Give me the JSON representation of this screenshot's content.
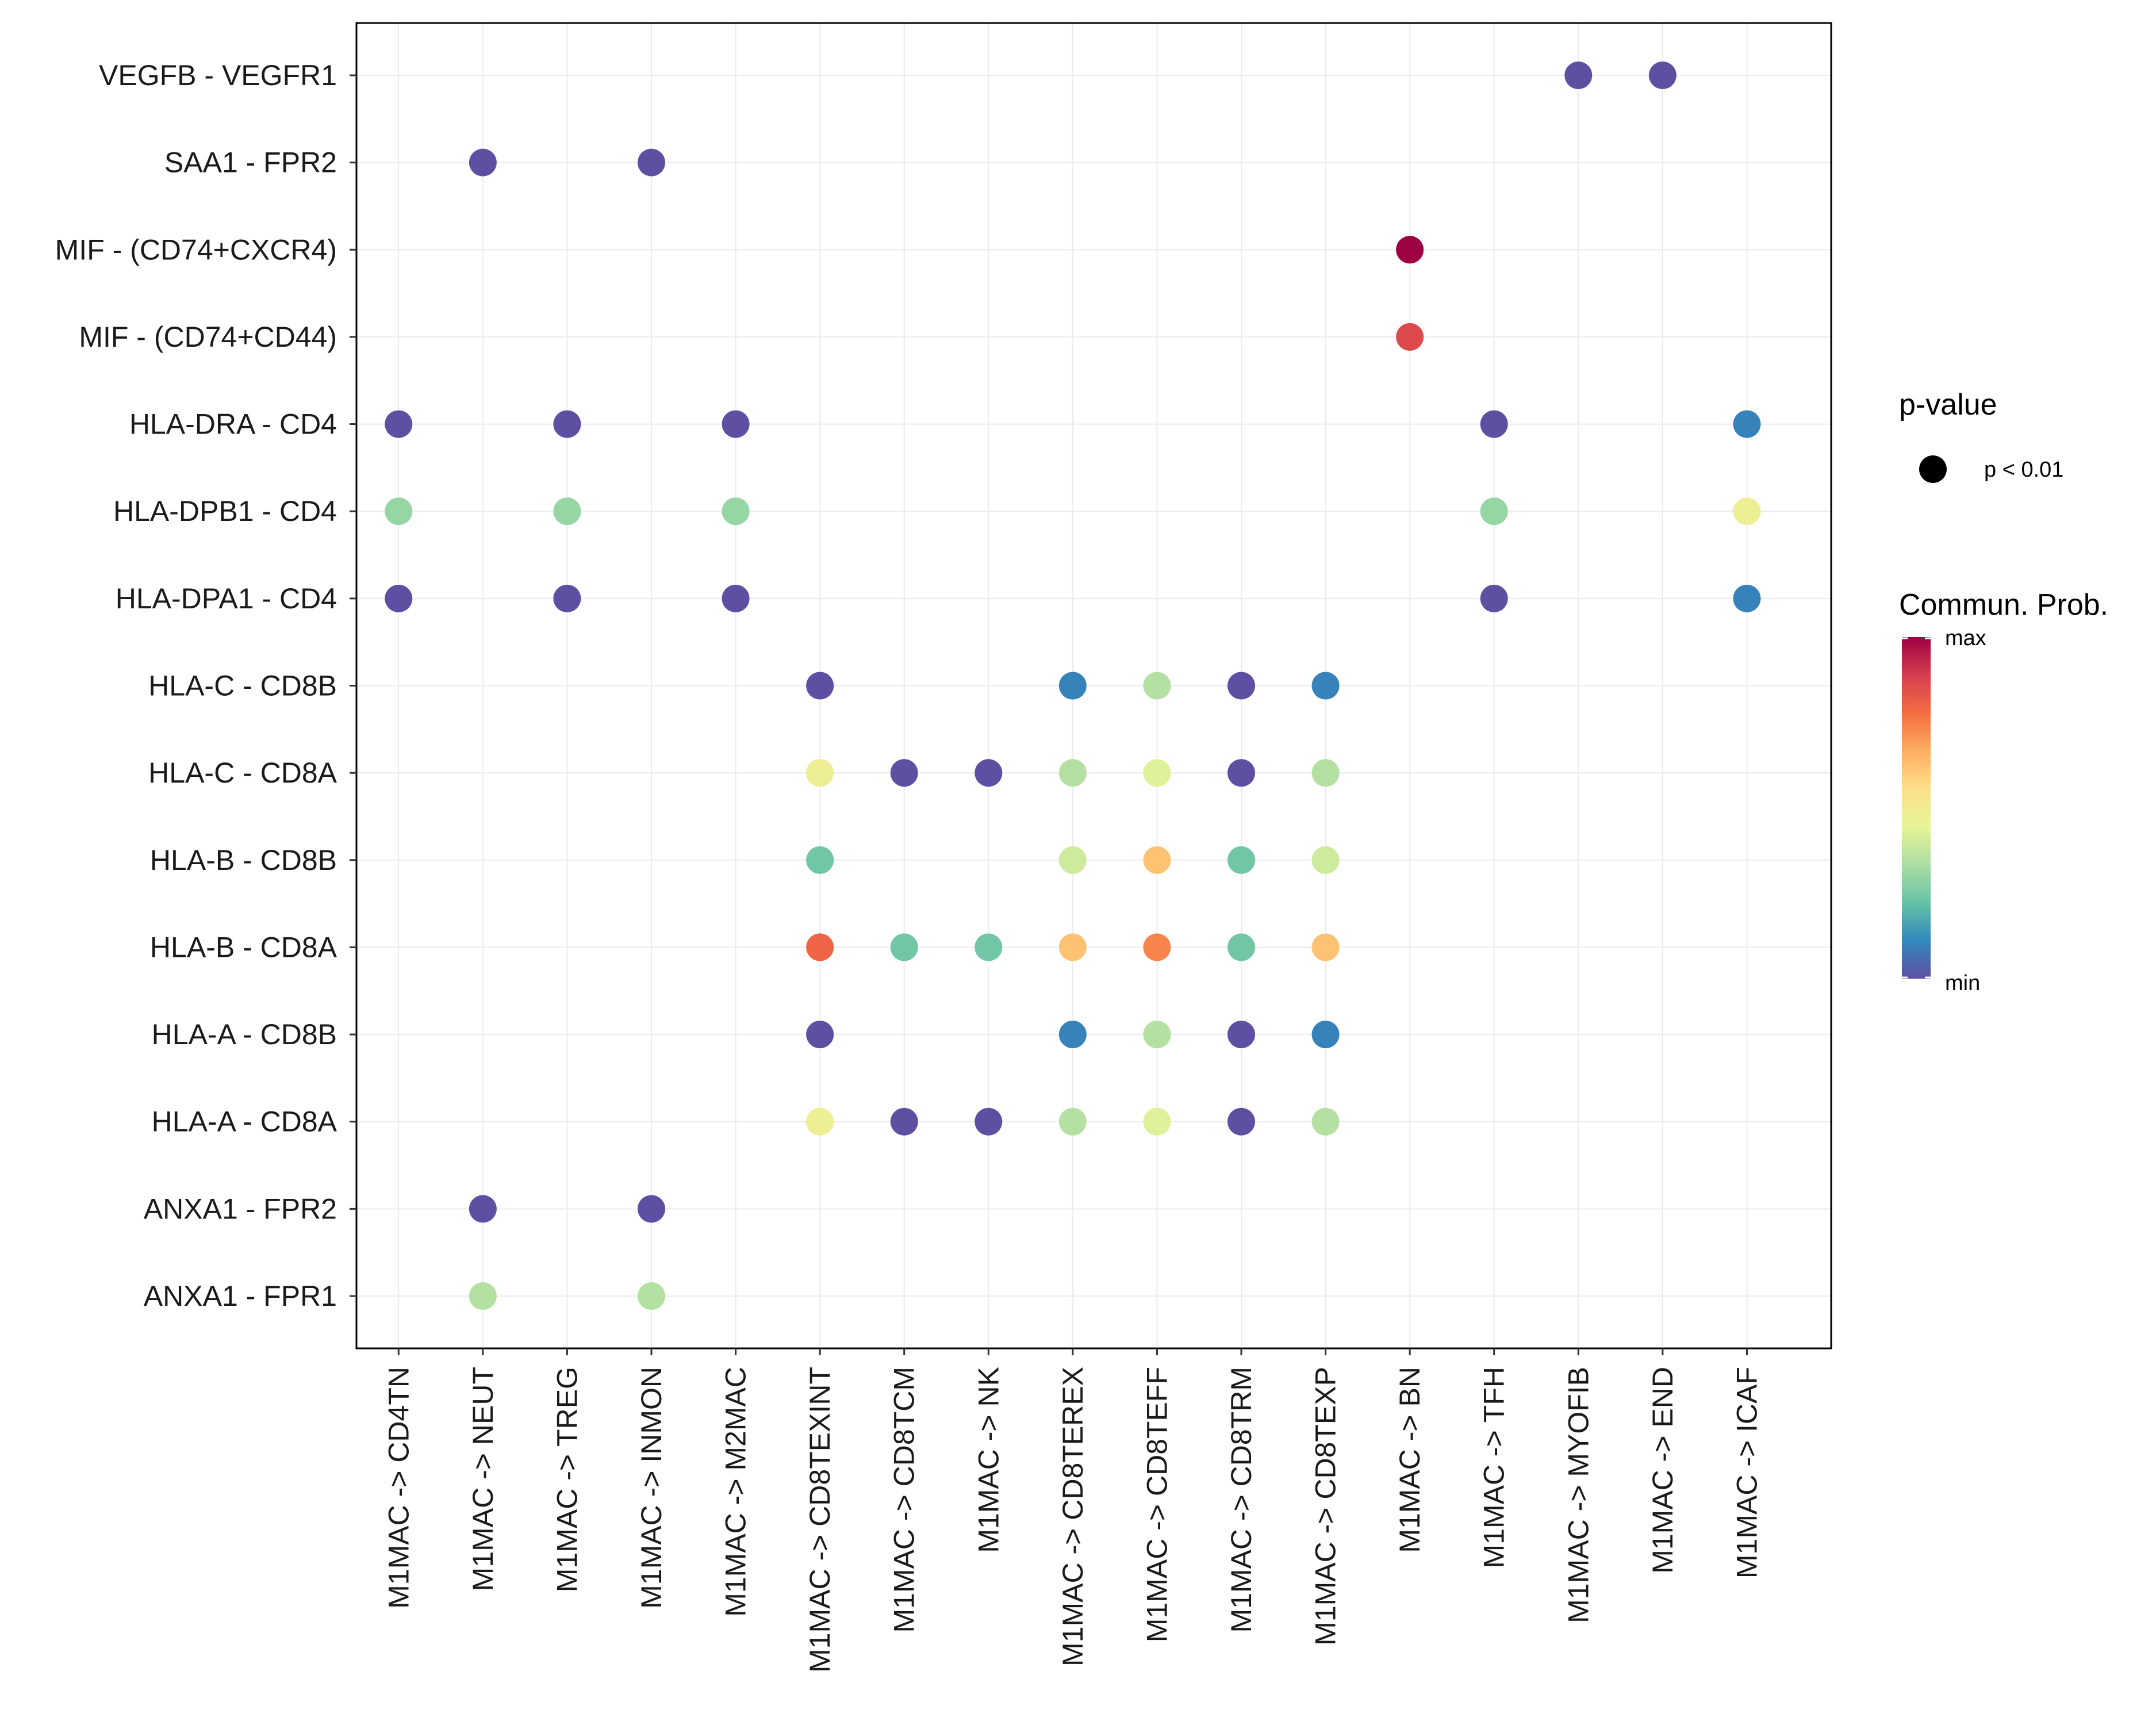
{
  "chart_data": {
    "type": "dot",
    "title": "",
    "rows": [
      "VEGFB - VEGFR1",
      "SAA1 - FPR2",
      "MIF - (CD74+CXCR4)",
      "MIF - (CD74+CD44)",
      "HLA-DRA - CD4",
      "HLA-DPB1 - CD4",
      "HLA-DPA1 - CD4",
      "HLA-C - CD8B",
      "HLA-C - CD8A",
      "HLA-B - CD8B",
      "HLA-B - CD8A",
      "HLA-A - CD8B",
      "HLA-A - CD8A",
      "ANXA1 - FPR2",
      "ANXA1 - FPR1"
    ],
    "columns": [
      "M1MAC -> CD4TN",
      "M1MAC -> NEUT",
      "M1MAC -> TREG",
      "M1MAC -> INMON",
      "M1MAC -> M2MAC",
      "M1MAC -> CD8TEXINT",
      "M1MAC -> CD8TCM",
      "M1MAC -> NK",
      "M1MAC -> CD8TEREX",
      "M1MAC -> CD8TEFF",
      "M1MAC -> CD8TRM",
      "M1MAC -> CD8TEXP",
      "M1MAC -> BN",
      "M1MAC -> TFH",
      "M1MAC -> MYOFIB",
      "M1MAC -> END",
      "M1MAC -> ICAF"
    ],
    "value_scale": "relative communication probability (0 = min, 1 = max)",
    "points": [
      {
        "row": "VEGFB - VEGFR1",
        "col": "M1MAC -> MYOFIB",
        "value": 0.0
      },
      {
        "row": "VEGFB - VEGFR1",
        "col": "M1MAC -> END",
        "value": 0.0
      },
      {
        "row": "SAA1 - FPR2",
        "col": "M1MAC -> NEUT",
        "value": 0.0
      },
      {
        "row": "SAA1 - FPR2",
        "col": "M1MAC -> INMON",
        "value": 0.0
      },
      {
        "row": "MIF - (CD74+CXCR4)",
        "col": "M1MAC -> BN",
        "value": 1.0
      },
      {
        "row": "MIF - (CD74+CD44)",
        "col": "M1MAC -> BN",
        "value": 0.86
      },
      {
        "row": "HLA-DRA - CD4",
        "col": "M1MAC -> CD4TN",
        "value": 0.0
      },
      {
        "row": "HLA-DRA - CD4",
        "col": "M1MAC -> TREG",
        "value": 0.0
      },
      {
        "row": "HLA-DRA - CD4",
        "col": "M1MAC -> M2MAC",
        "value": 0.0
      },
      {
        "row": "HLA-DRA - CD4",
        "col": "M1MAC -> TFH",
        "value": 0.0
      },
      {
        "row": "HLA-DRA - CD4",
        "col": "M1MAC -> ICAF",
        "value": 0.1
      },
      {
        "row": "HLA-DPB1 - CD4",
        "col": "M1MAC -> CD4TN",
        "value": 0.3
      },
      {
        "row": "HLA-DPB1 - CD4",
        "col": "M1MAC -> TREG",
        "value": 0.3
      },
      {
        "row": "HLA-DPB1 - CD4",
        "col": "M1MAC -> M2MAC",
        "value": 0.3
      },
      {
        "row": "HLA-DPB1 - CD4",
        "col": "M1MAC -> TFH",
        "value": 0.3
      },
      {
        "row": "HLA-DPB1 - CD4",
        "col": "M1MAC -> ICAF",
        "value": 0.48
      },
      {
        "row": "HLA-DPA1 - CD4",
        "col": "M1MAC -> CD4TN",
        "value": 0.0
      },
      {
        "row": "HLA-DPA1 - CD4",
        "col": "M1MAC -> TREG",
        "value": 0.0
      },
      {
        "row": "HLA-DPA1 - CD4",
        "col": "M1MAC -> M2MAC",
        "value": 0.0
      },
      {
        "row": "HLA-DPA1 - CD4",
        "col": "M1MAC -> TFH",
        "value": 0.0
      },
      {
        "row": "HLA-DPA1 - CD4",
        "col": "M1MAC -> ICAF",
        "value": 0.1
      },
      {
        "row": "HLA-C - CD8B",
        "col": "M1MAC -> CD8TEXINT",
        "value": 0.0
      },
      {
        "row": "HLA-C - CD8B",
        "col": "M1MAC -> CD8TEREX",
        "value": 0.1
      },
      {
        "row": "HLA-C - CD8B",
        "col": "M1MAC -> CD8TEFF",
        "value": 0.35
      },
      {
        "row": "HLA-C - CD8B",
        "col": "M1MAC -> CD8TRM",
        "value": 0.0
      },
      {
        "row": "HLA-C - CD8B",
        "col": "M1MAC -> CD8TEXP",
        "value": 0.1
      },
      {
        "row": "HLA-C - CD8A",
        "col": "M1MAC -> CD8TEXINT",
        "value": 0.48
      },
      {
        "row": "HLA-C - CD8A",
        "col": "M1MAC -> CD8TCM",
        "value": 0.0
      },
      {
        "row": "HLA-C - CD8A",
        "col": "M1MAC -> NK",
        "value": 0.0
      },
      {
        "row": "HLA-C - CD8A",
        "col": "M1MAC -> CD8TEREX",
        "value": 0.35
      },
      {
        "row": "HLA-C - CD8A",
        "col": "M1MAC -> CD8TEFF",
        "value": 0.43
      },
      {
        "row": "HLA-C - CD8A",
        "col": "M1MAC -> CD8TRM",
        "value": 0.0
      },
      {
        "row": "HLA-C - CD8A",
        "col": "M1MAC -> CD8TEXP",
        "value": 0.35
      },
      {
        "row": "HLA-B - CD8B",
        "col": "M1MAC -> CD8TEXINT",
        "value": 0.24
      },
      {
        "row": "HLA-B - CD8B",
        "col": "M1MAC -> CD8TEREX",
        "value": 0.4
      },
      {
        "row": "HLA-B - CD8B",
        "col": "M1MAC -> CD8TEFF",
        "value": 0.62
      },
      {
        "row": "HLA-B - CD8B",
        "col": "M1MAC -> CD8TRM",
        "value": 0.24
      },
      {
        "row": "HLA-B - CD8B",
        "col": "M1MAC -> CD8TEXP",
        "value": 0.4
      },
      {
        "row": "HLA-B - CD8A",
        "col": "M1MAC -> CD8TEXINT",
        "value": 0.8
      },
      {
        "row": "HLA-B - CD8A",
        "col": "M1MAC -> CD8TCM",
        "value": 0.24
      },
      {
        "row": "HLA-B - CD8A",
        "col": "M1MAC -> NK",
        "value": 0.24
      },
      {
        "row": "HLA-B - CD8A",
        "col": "M1MAC -> CD8TEREX",
        "value": 0.62
      },
      {
        "row": "HLA-B - CD8A",
        "col": "M1MAC -> CD8TEFF",
        "value": 0.74
      },
      {
        "row": "HLA-B - CD8A",
        "col": "M1MAC -> CD8TRM",
        "value": 0.24
      },
      {
        "row": "HLA-B - CD8A",
        "col": "M1MAC -> CD8TEXP",
        "value": 0.62
      },
      {
        "row": "HLA-A - CD8B",
        "col": "M1MAC -> CD8TEXINT",
        "value": 0.0
      },
      {
        "row": "HLA-A - CD8B",
        "col": "M1MAC -> CD8TEREX",
        "value": 0.1
      },
      {
        "row": "HLA-A - CD8B",
        "col": "M1MAC -> CD8TEFF",
        "value": 0.35
      },
      {
        "row": "HLA-A - CD8B",
        "col": "M1MAC -> CD8TRM",
        "value": 0.0
      },
      {
        "row": "HLA-A - CD8B",
        "col": "M1MAC -> CD8TEXP",
        "value": 0.1
      },
      {
        "row": "HLA-A - CD8A",
        "col": "M1MAC -> CD8TEXINT",
        "value": 0.48
      },
      {
        "row": "HLA-A - CD8A",
        "col": "M1MAC -> CD8TCM",
        "value": 0.0
      },
      {
        "row": "HLA-A - CD8A",
        "col": "M1MAC -> NK",
        "value": 0.0
      },
      {
        "row": "HLA-A - CD8A",
        "col": "M1MAC -> CD8TEREX",
        "value": 0.35
      },
      {
        "row": "HLA-A - CD8A",
        "col": "M1MAC -> CD8TEFF",
        "value": 0.43
      },
      {
        "row": "HLA-A - CD8A",
        "col": "M1MAC -> CD8TRM",
        "value": 0.0
      },
      {
        "row": "HLA-A - CD8A",
        "col": "M1MAC -> CD8TEXP",
        "value": 0.35
      },
      {
        "row": "ANXA1 - FPR2",
        "col": "M1MAC -> NEUT",
        "value": 0.0
      },
      {
        "row": "ANXA1 - FPR2",
        "col": "M1MAC -> INMON",
        "value": 0.0
      },
      {
        "row": "ANXA1 - FPR1",
        "col": "M1MAC -> NEUT",
        "value": 0.35
      },
      {
        "row": "ANXA1 - FPR1",
        "col": "M1MAC -> INMON",
        "value": 0.35
      }
    ],
    "legend": {
      "pvalue_title": "p-value",
      "pvalue_label": "p < 0.01",
      "color_title": "Commun. Prob.",
      "color_max_label": "max",
      "color_min_label": "min"
    },
    "colormap": [
      "#5E4FA2",
      "#3288BD",
      "#66C2A5",
      "#ABDDA4",
      "#E6F598",
      "#FEE08B",
      "#FDAE61",
      "#F46D43",
      "#D53E4F",
      "#9E0142"
    ]
  }
}
